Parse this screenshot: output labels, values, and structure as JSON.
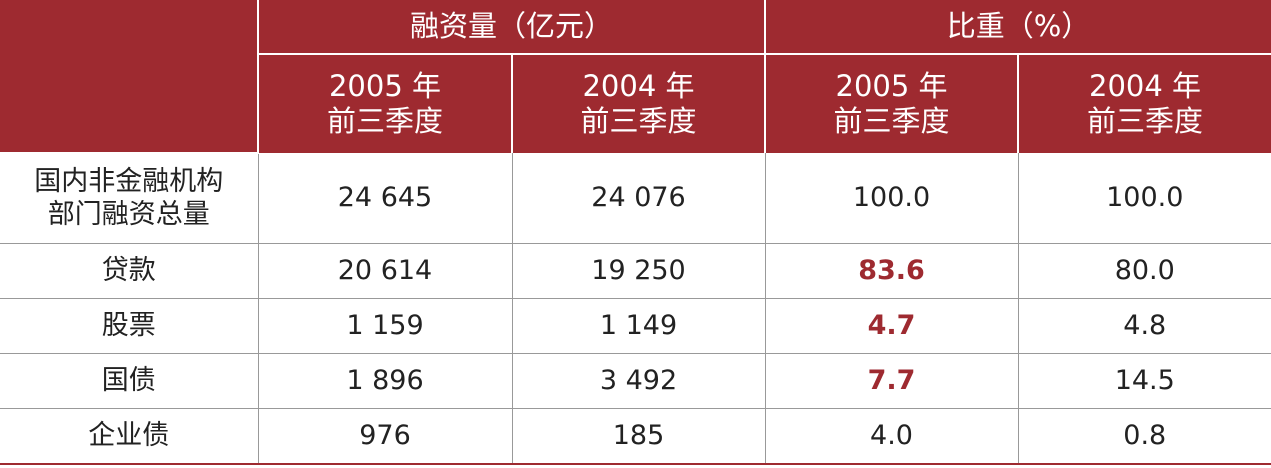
{
  "table": {
    "header": {
      "groups": [
        "融资量（亿元）",
        "比重（%）"
      ],
      "columns": [
        "2005 年\n前三季度",
        "2004 年\n前三季度",
        "2005 年\n前三季度",
        "2004 年\n前三季度"
      ]
    },
    "rows": [
      [
        "国内非金融机构\n部门融资总量",
        "24 645",
        "24 076",
        "100.0",
        "100.0"
      ],
      [
        "贷款",
        "20 614",
        "19 250",
        "83.6",
        "80.0"
      ],
      [
        "股票",
        "1 159",
        "1 149",
        "4.7",
        "4.8"
      ],
      [
        "国债",
        "1 896",
        "3 492",
        "7.7",
        "14.5"
      ],
      [
        "企业债",
        "976",
        "185",
        "4.0",
        "0.8"
      ]
    ]
  }
}
